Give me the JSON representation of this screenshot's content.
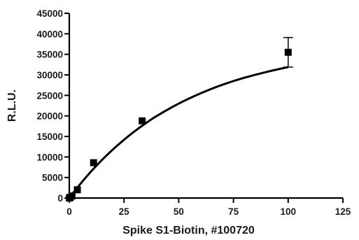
{
  "chart_data": {
    "type": "scatter",
    "title": "",
    "xlabel": "Spike S1-Biotin, #100720",
    "ylabel": "R.L.U.",
    "xlim": [
      0,
      125
    ],
    "ylim": [
      0,
      45000
    ],
    "x_ticks": [
      0,
      25,
      50,
      75,
      100,
      125
    ],
    "y_ticks": [
      0,
      5000,
      10000,
      15000,
      20000,
      25000,
      30000,
      35000,
      40000,
      45000
    ],
    "grid": false,
    "legend": "none",
    "series": [
      {
        "marker": "square",
        "color": "#000000",
        "x": [
          0,
          0.41,
          1.23,
          3.7,
          11.1,
          33.3,
          100
        ],
        "y": [
          0,
          150,
          500,
          2000,
          8600,
          18800,
          35500
        ],
        "error": [
          0,
          0,
          0,
          0,
          0,
          0,
          3600
        ]
      }
    ],
    "fit_curve": {
      "type": "saturation",
      "color": "#000000",
      "x": [
        0,
        1,
        2,
        4,
        6,
        8,
        11,
        15,
        20,
        25,
        30,
        35,
        40,
        50,
        60,
        70,
        80,
        90,
        100
      ],
      "y": [
        0,
        700,
        1390,
        2740,
        4040,
        5290,
        7080,
        9300,
        11860,
        14190,
        16320,
        18240,
        20000,
        23000,
        25500,
        27600,
        29300,
        30700,
        31900
      ]
    }
  }
}
